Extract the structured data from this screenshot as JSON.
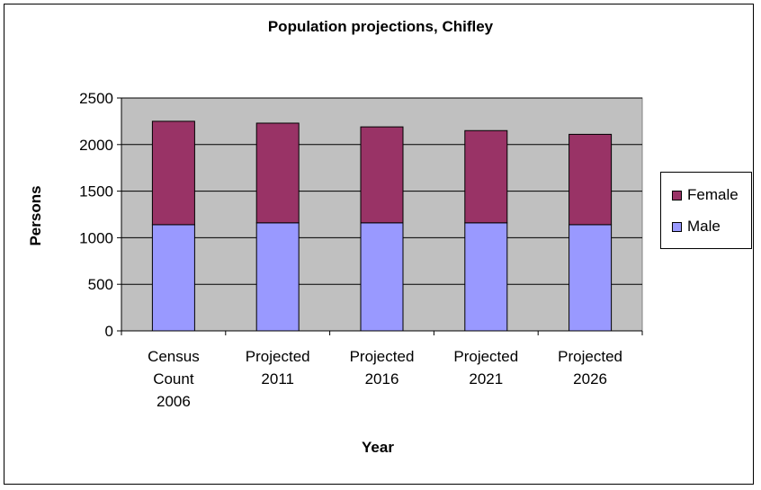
{
  "chart_data": {
    "type": "bar",
    "stacked": true,
    "title": "Population projections, Chifley",
    "xlabel": "Year",
    "ylabel": "Persons",
    "ylim": [
      0,
      2500
    ],
    "yticks": [
      0,
      500,
      1000,
      1500,
      2000,
      2500
    ],
    "categories": [
      [
        "Census",
        "Count",
        "2006"
      ],
      [
        "Projected",
        "2011"
      ],
      [
        "Projected",
        "2016"
      ],
      [
        "Projected",
        "2021"
      ],
      [
        "Projected",
        "2026"
      ]
    ],
    "series": [
      {
        "name": "Male",
        "values": [
          1140,
          1160,
          1160,
          1160,
          1140
        ],
        "color": "#9999ff"
      },
      {
        "name": "Female",
        "values": [
          1110,
          1070,
          1030,
          990,
          970
        ],
        "color": "#993366"
      }
    ],
    "plot_background": "#c0c0c0",
    "grid": true,
    "legend_position": "right"
  }
}
